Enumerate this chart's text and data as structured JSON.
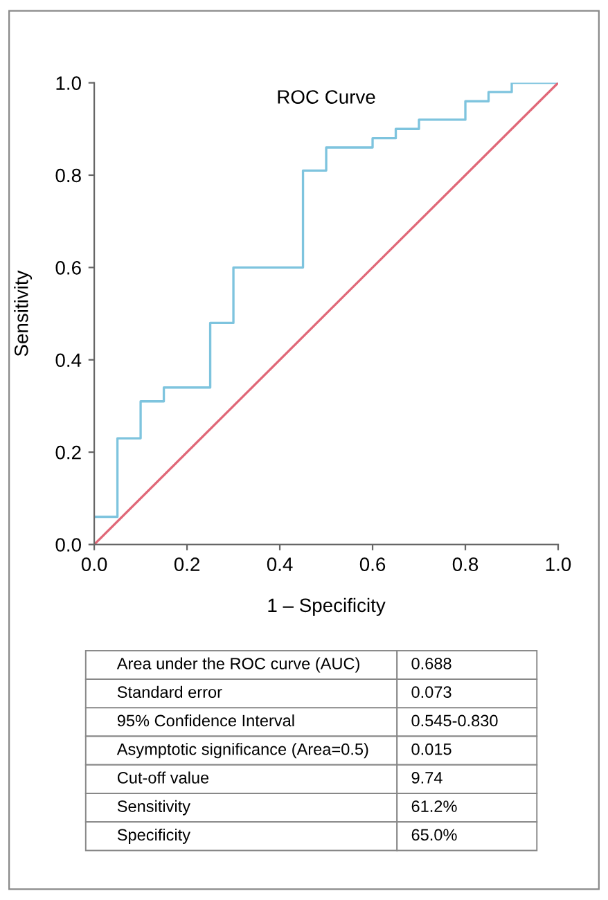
{
  "chart_data": {
    "type": "step",
    "title": "ROC Curve",
    "xlabel": "1 – Specificity",
    "ylabel": "Sensitivity",
    "series": [
      {
        "color": "#7ec4de",
        "x": [
          0,
          0.05,
          0.1,
          0.15,
          0.25,
          0.3,
          0.45,
          0.5,
          0.6,
          0.65,
          0.7,
          0.8,
          0.85,
          0.9,
          1.0
        ],
        "values": [
          0.06,
          0.23,
          0.31,
          0.34,
          0.48,
          0.6,
          0.81,
          0.86,
          0.88,
          0.9,
          0.92,
          0.96,
          0.98,
          1.0,
          1.0
        ]
      },
      {
        "type": "line",
        "color": "#e06878",
        "x": [
          0,
          1
        ],
        "values": [
          0,
          1
        ]
      }
    ],
    "xlim": [
      0,
      1
    ],
    "ylim": [
      0,
      1
    ],
    "xticks": [
      {
        "value": 0,
        "label": "0.0"
      },
      {
        "value": 0.2,
        "label": "0.2"
      },
      {
        "value": 0.4,
        "label": "0.4"
      },
      {
        "value": 0.6,
        "label": "0.6"
      },
      {
        "value": 0.8,
        "label": "0.8"
      },
      {
        "value": 1,
        "label": "1.0"
      }
    ],
    "yticks": [
      {
        "value": 0,
        "label": "0.0"
      },
      {
        "value": 0.2,
        "label": "0.2"
      },
      {
        "value": 0.4,
        "label": "0.4"
      },
      {
        "value": 0.6,
        "label": "0.6"
      },
      {
        "value": 0.8,
        "label": "0.8"
      },
      {
        "value": 1,
        "label": "1.0"
      }
    ],
    "grid": false,
    "annotations": [
      "Area under the ROC curve (AUC)",
      "0.688",
      "Standard error",
      "0.073",
      "95% Confidence Interval",
      "0.545-0.830",
      "Asymptotic significance (Area=0.5)",
      "0.015",
      "Cut-off value",
      "9.74",
      "Sensitivity",
      "61.2%",
      "Specificity",
      "65.0%"
    ]
  }
}
